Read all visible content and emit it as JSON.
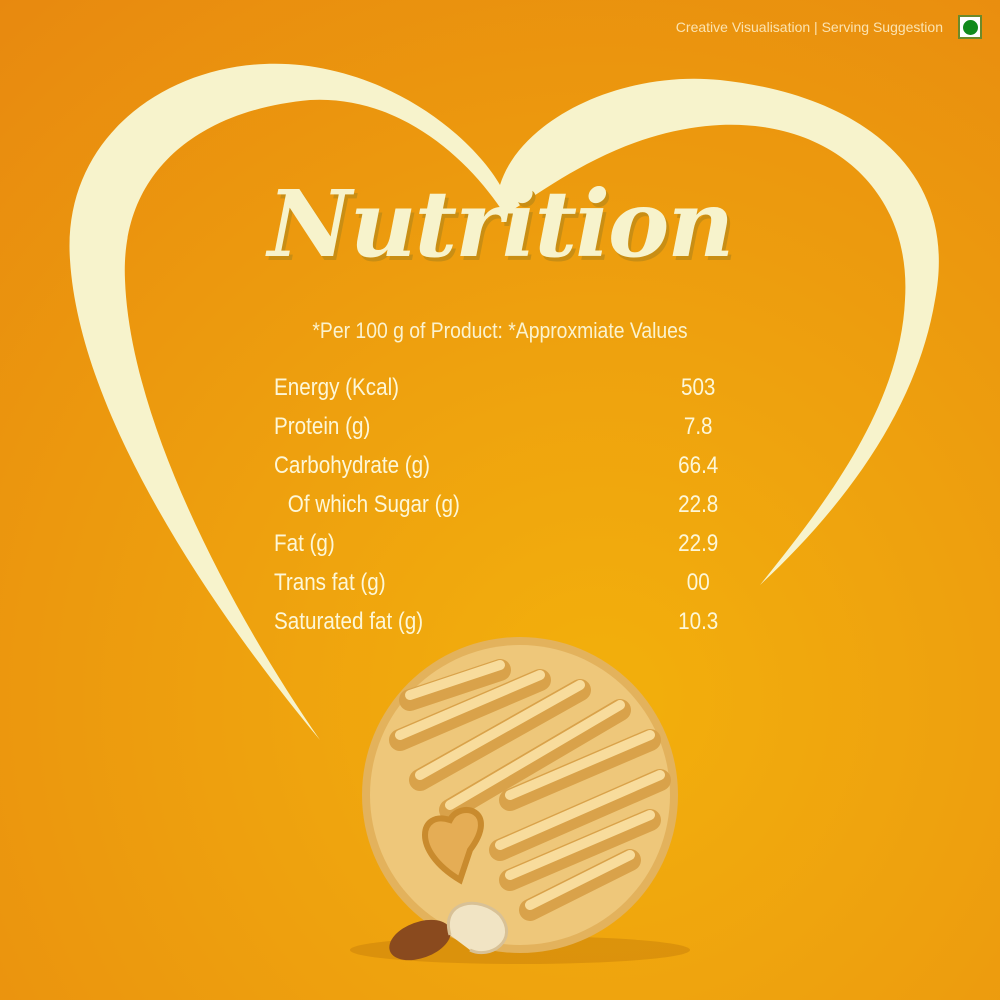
{
  "header": {
    "note": "Creative Visualisation | Serving Suggestion",
    "veg_mark_icon": "veg-symbol-green-dot",
    "veg_color": "#118a1c"
  },
  "title": "Nutrition",
  "subtitle": "*Per 100 g of Product: *Approxmiate Values",
  "nutrition": [
    {
      "label": "Energy (Kcal)",
      "value": "503"
    },
    {
      "label": "Protein (g)",
      "value": "7.8"
    },
    {
      "label": "Carbohydrate (g)",
      "value": "66.4"
    },
    {
      "label": "Of which Sugar (g)",
      "value": "22.8"
    },
    {
      "label": "Fat (g)",
      "value": "22.9"
    },
    {
      "label": "Trans fat (g)",
      "value": "00"
    },
    {
      "label": "Saturated fat (g)",
      "value": "10.3"
    }
  ],
  "colors": {
    "background": "#ee9f0e",
    "heart": "#f7f3cc",
    "text": "#fdf7d8"
  }
}
